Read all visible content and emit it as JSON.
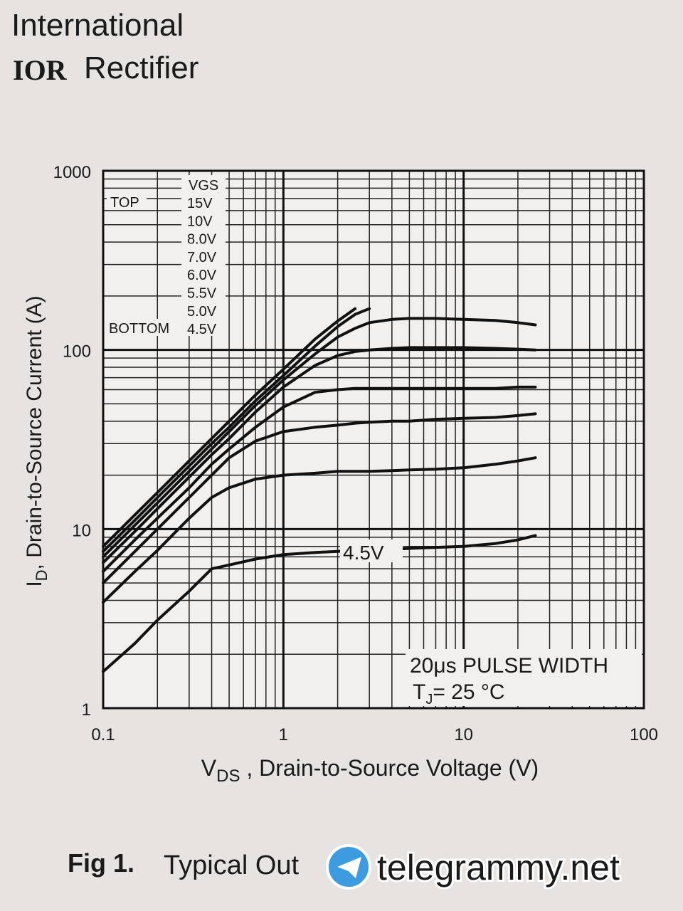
{
  "header": {
    "company": "International",
    "logo": "IOR",
    "brand": "Rectifier"
  },
  "chart_data": {
    "type": "line",
    "ylabel": {
      "main": "I",
      "sub": "D",
      "rest": ", Drain-to-Source Current (A)"
    },
    "xlabel": {
      "main": "V",
      "sub": "DS",
      "rest": " , Drain-to-Source Voltage (V)"
    },
    "log_x": true,
    "log_y": true,
    "grid": true,
    "xlim": [
      0.1,
      100
    ],
    "ylim": [
      1,
      1000
    ],
    "xticks": [
      0.1,
      1,
      10,
      100
    ],
    "yticks": [
      1,
      10,
      100,
      1000
    ],
    "xminorticks": [
      0.2,
      0.3,
      0.4,
      0.5,
      0.6,
      0.7,
      0.8,
      0.9,
      2,
      3,
      4,
      5,
      6,
      7,
      8,
      9,
      20,
      30,
      40,
      50,
      60,
      70,
      80,
      90
    ],
    "yminorticks": [
      2,
      3,
      4,
      5,
      6,
      7,
      8,
      9,
      20,
      30,
      40,
      50,
      60,
      70,
      80,
      90,
      200,
      300,
      400,
      500,
      600,
      700,
      800,
      900
    ],
    "legend_title": "VGS",
    "legend_top": "TOP",
    "legend_bottom": "BOTTOM",
    "x": [
      0.1,
      0.15,
      0.2,
      0.3,
      0.4,
      0.5,
      0.7,
      1,
      1.5,
      2,
      2.5,
      3,
      4,
      5,
      7,
      10,
      15,
      20,
      25
    ],
    "series": [
      {
        "name": "15V",
        "color": "#111111",
        "values": [
          8,
          12,
          16,
          24,
          32,
          40,
          56,
          78,
          115,
          145,
          170,
          null,
          null,
          null,
          null,
          null,
          null,
          null,
          null
        ]
      },
      {
        "name": "10V",
        "color": "#111111",
        "values": [
          7.5,
          11.2,
          15,
          22.5,
          30,
          37,
          52,
          72,
          105,
          135,
          158,
          170,
          null,
          null,
          null,
          null,
          null,
          null,
          null
        ]
      },
      {
        "name": "8.0V",
        "color": "#111111",
        "values": [
          7,
          10.5,
          14,
          21,
          28,
          35,
          49,
          68,
          95,
          118,
          132,
          142,
          148,
          150,
          150,
          148,
          146,
          142,
          138
        ]
      },
      {
        "name": "7.0V",
        "color": "#111111",
        "values": [
          6.5,
          9.7,
          13,
          19.5,
          26,
          32,
          45,
          62,
          82,
          93,
          98,
          100,
          102,
          103,
          103,
          103,
          102,
          101,
          100
        ]
      },
      {
        "name": "6.0V",
        "color": "#111111",
        "values": [
          5.8,
          8.7,
          11.5,
          17,
          23,
          28,
          37,
          48,
          58,
          60,
          61,
          61,
          61,
          61,
          61,
          61,
          61,
          62,
          62
        ]
      },
      {
        "name": "5.5V",
        "color": "#111111",
        "values": [
          5,
          7.5,
          10,
          15,
          20,
          25,
          31,
          35,
          37,
          38,
          39,
          39.5,
          40,
          40,
          41,
          41.5,
          42,
          43,
          44
        ]
      },
      {
        "name": "5.0V",
        "color": "#111111",
        "values": [
          3.9,
          5.8,
          7.6,
          11.5,
          15,
          17,
          19,
          20,
          20.5,
          21,
          21,
          21,
          21.2,
          21.4,
          21.6,
          22,
          23,
          24,
          25
        ]
      },
      {
        "name": "4.5V",
        "color": "#111111",
        "values": [
          1.6,
          2.3,
          3.1,
          4.5,
          6,
          6.3,
          6.8,
          7.2,
          7.4,
          7.5,
          7.6,
          7.6,
          7.7,
          7.8,
          7.9,
          8,
          8.3,
          8.7,
          9.2
        ]
      }
    ],
    "curve_label": "4.5V",
    "pulse_note": "20μs PULSE WIDTH",
    "temp_note": {
      "main": "T",
      "sub": "J",
      "rest": "= 25 °C"
    }
  },
  "caption": {
    "fig": "Fig 1.",
    "text": "Typical Out"
  },
  "watermark": "telegrammy.net"
}
